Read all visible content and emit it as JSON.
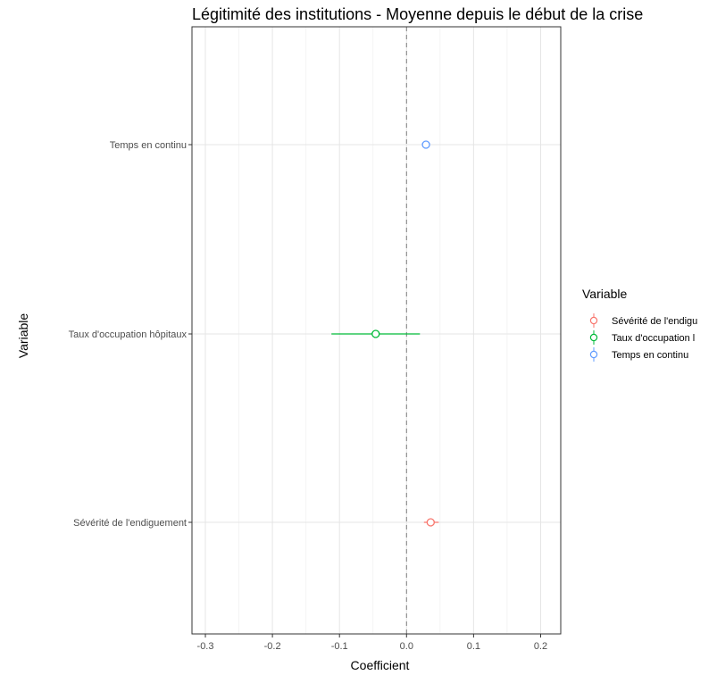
{
  "chart_data": {
    "type": "scatter",
    "title": "Légitimité des institutions  - Moyenne depuis le début de la crise",
    "xlabel": "Coefficient",
    "ylabel": "Variable",
    "xlim": [
      -0.32,
      0.23
    ],
    "x_ticks": [
      -0.3,
      -0.2,
      -0.1,
      0.0,
      0.1,
      0.2
    ],
    "x_tick_labels": [
      "-0.3",
      "-0.2",
      "-0.1",
      "0.0",
      "0.1",
      "0.2"
    ],
    "reference_line": 0,
    "grid": true,
    "categories": [
      "Temps en continu",
      "Taux d'occupation hôpitaux",
      "Sévérité de l'endiguement"
    ],
    "points": [
      {
        "category": "Temps en continu",
        "estimate": 0.029,
        "lower": 0.026,
        "upper": 0.032,
        "color": "#619CFF"
      },
      {
        "category": "Taux d'occupation hôpitaux",
        "estimate": -0.046,
        "lower": -0.112,
        "upper": 0.02,
        "color": "#00BA38"
      },
      {
        "category": "Sévérité de l'endiguement",
        "estimate": 0.036,
        "lower": 0.026,
        "upper": 0.048,
        "color": "#F8766D"
      }
    ],
    "legend": {
      "title": "Variable",
      "position": "right",
      "entries": [
        {
          "label": "Sévérité de l'endigu",
          "color": "#F8766D"
        },
        {
          "label": "Taux d'occupation l",
          "color": "#00BA38"
        },
        {
          "label": "Temps en continu",
          "color": "#619CFF"
        }
      ]
    }
  }
}
